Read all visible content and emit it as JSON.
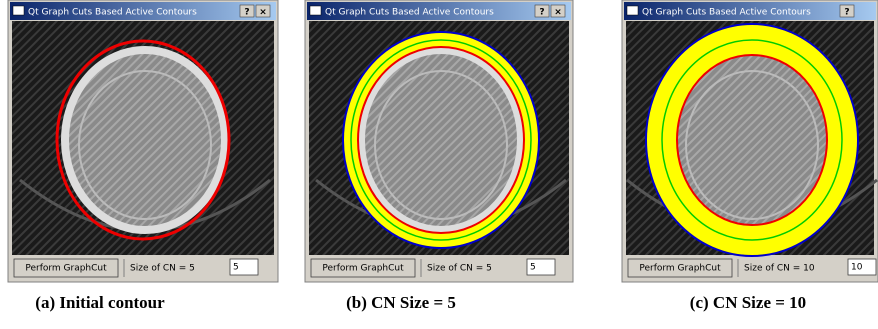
{
  "panels": [
    {
      "window_title": "Qt Graph Cuts Based Active Contours",
      "help_button": "?",
      "close_button": "×",
      "perform_button": "Perform GraphCut",
      "cn_label": "Size of CN = 5",
      "cn_input": "5",
      "caption": "(a) Initial contour"
    },
    {
      "window_title": "Qt Graph Cuts Based Active Contours",
      "help_button": "?",
      "close_button": "×",
      "perform_button": "Perform GraphCut",
      "cn_label": "Size of CN = 5",
      "cn_input": "5",
      "caption": "(b) CN Size = 5"
    },
    {
      "window_title": "Qt Graph Cuts Based Active Contours",
      "help_button": "?",
      "perform_button": "Perform GraphCut",
      "cn_label": "Size of CN = 10",
      "cn_input": "10",
      "caption": "(c) CN Size = 10"
    }
  ]
}
